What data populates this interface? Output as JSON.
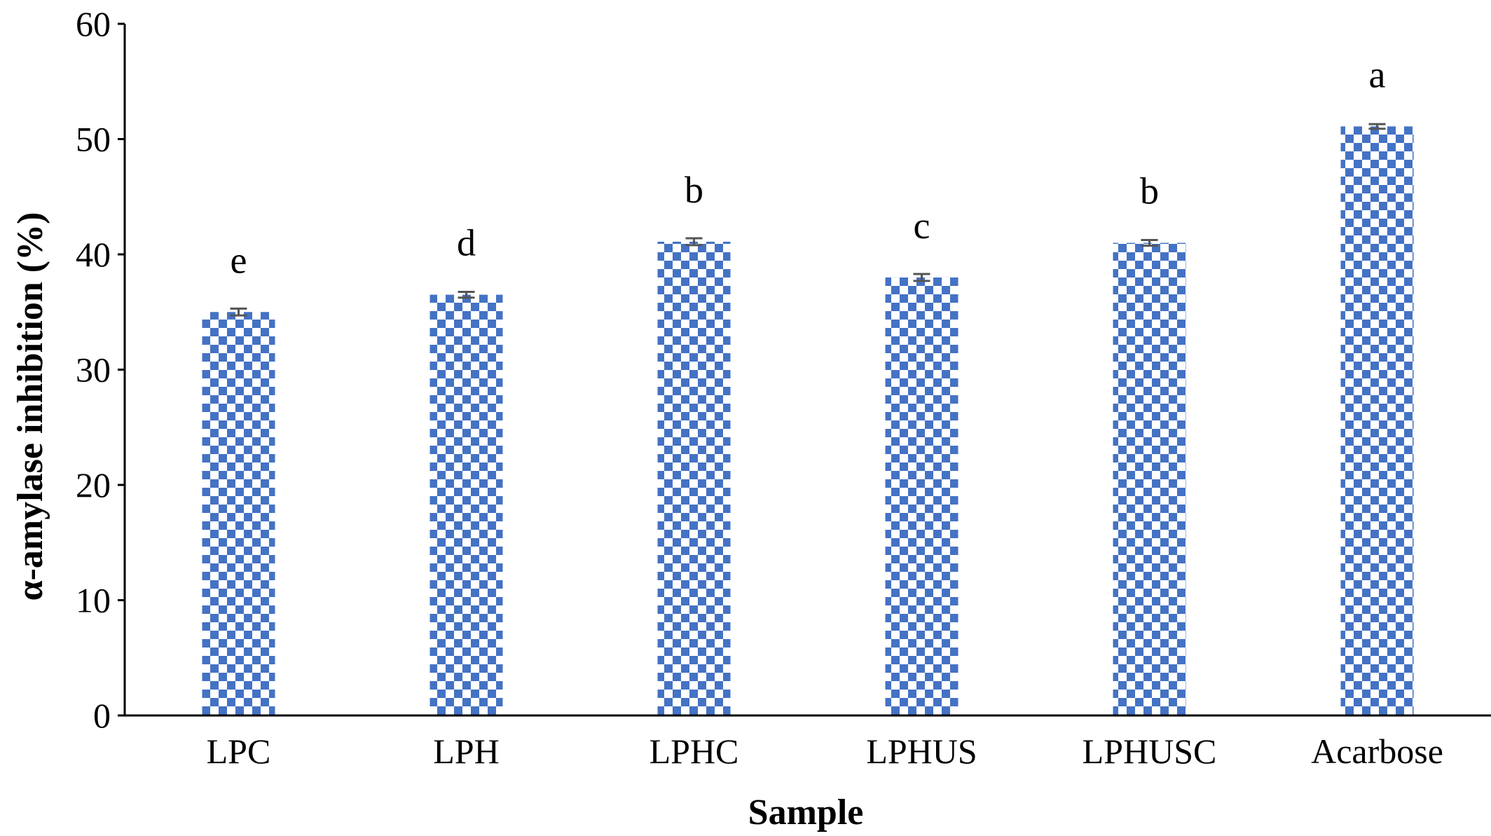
{
  "chart_data": {
    "type": "bar",
    "title": "",
    "xlabel": "Sample",
    "ylabel": "α-amylase inhibition (%)",
    "ylim": [
      0,
      60
    ],
    "yticks": [
      "0",
      "10",
      "20",
      "30",
      "40",
      "50",
      "60"
    ],
    "grid": false,
    "categories": [
      "LPC",
      "LPH",
      "LPHC",
      "LPHUS",
      "LPHUSC",
      "Acarbose"
    ],
    "values": [
      35.0,
      36.5,
      41.1,
      38.0,
      41.0,
      51.1
    ],
    "errors": [
      0.3,
      0.25,
      0.3,
      0.3,
      0.25,
      0.2
    ],
    "significance_letters": [
      "e",
      "d",
      "b",
      "c",
      "b",
      "a"
    ],
    "colors": {
      "bar_pattern": "#4472C4",
      "bar_background": "#ffffff",
      "error_bar": "#555555",
      "axis": "#000000"
    }
  }
}
